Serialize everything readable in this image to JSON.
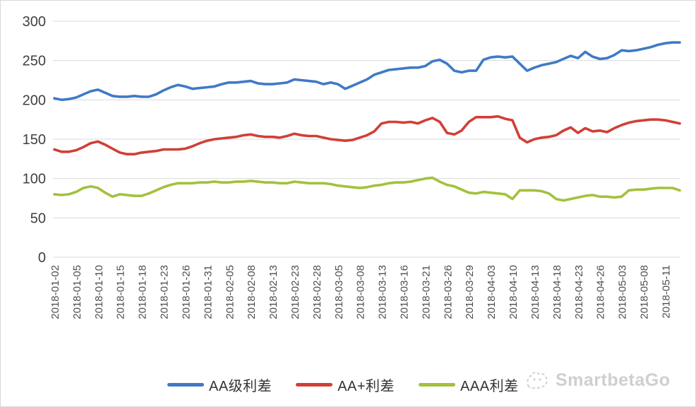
{
  "chart_data": {
    "type": "line",
    "title": "",
    "xlabel": "",
    "ylabel": "",
    "ylim": [
      0,
      300
    ],
    "y_ticks": [
      0,
      50,
      100,
      150,
      200,
      250,
      300
    ],
    "grid": "horizontal",
    "grid_color": "#d9d9d9",
    "axis_text_color": "#404040",
    "x_tick_text_color": "#4d4d4d",
    "legend_position": "bottom",
    "n_points": 87,
    "label_every": 3,
    "x_labels": [
      "2018-01-02",
      "2018-01-05",
      "2018-01-10",
      "2018-01-15",
      "2018-01-18",
      "2018-01-23",
      "2018-01-26",
      "2018-01-31",
      "2018-02-05",
      "2018-02-08",
      "2018-02-13",
      "2018-02-23",
      "2018-02-28",
      "2018-03-05",
      "2018-03-08",
      "2018-03-13",
      "2018-03-16",
      "2018-03-21",
      "2018-03-26",
      "2018-03-29",
      "2018-04-03",
      "2018-04-10",
      "2018-04-13",
      "2018-04-18",
      "2018-04-23",
      "2018-04-26",
      "2018-05-03",
      "2018-05-08",
      "2018-05-11"
    ],
    "series": [
      {
        "name": "AA级利差",
        "color": "#3f7ac6",
        "values": [
          202,
          200,
          201,
          203,
          207,
          211,
          213,
          209,
          205,
          204,
          204,
          205,
          204,
          204,
          207,
          212,
          216,
          219,
          217,
          214,
          215,
          216,
          217,
          220,
          222,
          222,
          223,
          224,
          221,
          220,
          220,
          221,
          222,
          226,
          225,
          224,
          223,
          220,
          222,
          220,
          214,
          218,
          222,
          226,
          232,
          235,
          238,
          239,
          240,
          241,
          241,
          243,
          249,
          251,
          246,
          237,
          235,
          237,
          237,
          251,
          254,
          255,
          254,
          255,
          246,
          237,
          241,
          244,
          246,
          248,
          252,
          256,
          253,
          261,
          255,
          252,
          253,
          257,
          263,
          262,
          263,
          265,
          267,
          270,
          272,
          273,
          273
        ]
      },
      {
        "name": "AA+利差",
        "color": "#d13f36",
        "values": [
          137,
          134,
          134,
          136,
          140,
          145,
          147,
          143,
          138,
          133,
          131,
          131,
          133,
          134,
          135,
          137,
          137,
          137,
          138,
          141,
          145,
          148,
          150,
          151,
          152,
          153,
          155,
          156,
          154,
          153,
          153,
          152,
          154,
          157,
          155,
          154,
          154,
          152,
          150,
          149,
          148,
          149,
          152,
          155,
          160,
          170,
          172,
          172,
          171,
          172,
          170,
          174,
          177,
          172,
          158,
          156,
          161,
          172,
          178,
          178,
          178,
          179,
          176,
          174,
          152,
          146,
          150,
          152,
          153,
          155,
          161,
          165,
          158,
          164,
          160,
          161,
          159,
          164,
          168,
          171,
          173,
          174,
          175,
          175,
          174,
          172,
          170
        ]
      },
      {
        "name": "AAA利差",
        "color": "#a3c13c",
        "values": [
          80,
          79,
          80,
          83,
          88,
          90,
          88,
          82,
          77,
          80,
          79,
          78,
          78,
          81,
          85,
          89,
          92,
          94,
          94,
          94,
          95,
          95,
          96,
          95,
          95,
          96,
          96,
          97,
          96,
          95,
          95,
          94,
          94,
          96,
          95,
          94,
          94,
          94,
          93,
          91,
          90,
          89,
          88,
          89,
          91,
          92,
          94,
          95,
          95,
          96,
          98,
          100,
          101,
          96,
          92,
          90,
          86,
          82,
          81,
          83,
          82,
          81,
          80,
          74,
          85,
          85,
          85,
          84,
          81,
          74,
          72,
          74,
          76,
          78,
          79,
          77,
          77,
          76,
          77,
          85,
          86,
          86,
          87,
          88,
          88,
          88,
          85
        ]
      }
    ]
  },
  "watermark": {
    "text": "SmartbetaGo"
  }
}
